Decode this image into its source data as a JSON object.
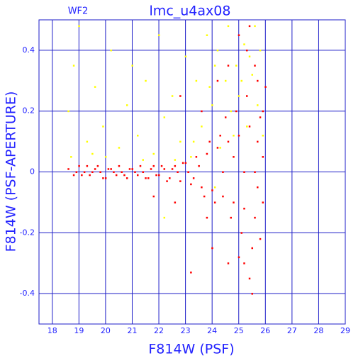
{
  "chart_data": {
    "type": "scatter",
    "title": "lmc_u4ax08",
    "annotation": "WF2",
    "x_label": "F814W (PSF)",
    "y_label": "F814W (PSF-APERTURE)",
    "xlim": [
      17.5,
      29
    ],
    "xticks": [
      18,
      19,
      20,
      21,
      22,
      23,
      24,
      25,
      26,
      27,
      28,
      29
    ],
    "ylim": [
      -0.5,
      0.5
    ],
    "yticks": [
      -0.4,
      -0.2,
      0,
      0.2,
      0.4
    ],
    "grid": true,
    "series": [
      {
        "color": "#ffff00",
        "x": [
          18.6,
          18.8,
          19.0,
          19.3,
          19.6,
          19.9,
          20.2,
          20.5,
          20.8,
          21.0,
          21.2,
          21.5,
          21.8,
          22.0,
          22.2,
          22.5,
          22.8,
          23.0,
          23.2,
          23.4,
          23.6,
          23.8,
          24.0,
          24.2,
          24.3,
          24.5,
          24.6,
          24.8,
          24.9,
          25.0,
          25.2,
          25.3,
          25.5,
          25.6,
          25.7,
          25.8,
          25.9,
          24.1,
          23.9,
          24.7,
          25.1,
          25.4,
          20.0,
          21.4,
          22.6,
          23.3,
          18.7,
          19.5,
          22.2,
          24.1
        ],
        "y": [
          0.2,
          0.35,
          0.48,
          0.1,
          0.28,
          0.15,
          0.4,
          0.08,
          0.22,
          0.35,
          0.12,
          0.3,
          0.06,
          0.45,
          0.18,
          0.25,
          0.1,
          0.38,
          0.05,
          0.3,
          0.15,
          0.45,
          0.22,
          0.4,
          0.08,
          0.3,
          0.48,
          0.12,
          0.35,
          0.25,
          0.42,
          0.15,
          0.32,
          0.48,
          0.22,
          0.4,
          0.12,
          0.35,
          0.28,
          0.2,
          0.3,
          0.38,
          0.05,
          0.04,
          0.04,
          0.1,
          0.05,
          0.06,
          -0.15,
          -0.05
        ]
      },
      {
        "color": "#ff0000",
        "x": [
          18.6,
          18.8,
          19.0,
          19.2,
          19.4,
          19.6,
          19.8,
          20.0,
          20.2,
          20.4,
          20.6,
          20.8,
          21.0,
          21.2,
          21.4,
          21.6,
          21.8,
          22.0,
          22.2,
          22.4,
          22.6,
          22.8,
          23.0,
          23.2,
          23.4,
          23.6,
          23.8,
          24.0,
          24.2,
          24.4,
          24.6,
          24.8,
          25.0,
          25.2,
          25.4,
          25.6,
          25.8,
          25.1,
          25.3,
          25.5,
          25.7,
          25.2,
          25.9,
          25.6,
          25.4,
          25.5,
          25.3,
          25.8,
          24.9,
          24.7,
          24.5,
          24.3,
          24.1,
          23.9,
          23.7,
          23.5,
          23.3,
          23.1,
          22.9,
          22.7,
          22.5,
          22.3,
          22.1,
          21.9,
          21.7,
          21.5,
          21.3,
          21.1,
          20.9,
          20.7,
          20.5,
          20.3,
          20.1,
          19.9,
          19.7,
          19.5,
          19.3,
          19.1,
          18.9,
          24.2,
          24.6,
          25.0,
          25.4,
          23.2,
          24.0,
          24.6,
          25.0,
          25.9,
          25.9,
          25.7,
          25.7,
          26.0,
          22.8,
          23.6,
          21.8,
          22.6,
          23.8,
          24.8,
          24.4,
          25.2,
          25.6
        ],
        "y": [
          0.01,
          -0.01,
          0.02,
          0.0,
          -0.01,
          0.01,
          0.0,
          -0.02,
          0.01,
          -0.01,
          0.0,
          -0.02,
          0.01,
          -0.01,
          0.0,
          -0.02,
          0.02,
          -0.01,
          0.01,
          -0.02,
          0.02,
          -0.03,
          0.03,
          -0.04,
          0.05,
          -0.05,
          0.06,
          -0.06,
          0.08,
          -0.08,
          0.1,
          -0.1,
          0.12,
          -0.12,
          0.15,
          -0.15,
          0.18,
          -0.2,
          0.25,
          -0.25,
          0.3,
          -0.3,
          0.2,
          0.35,
          -0.35,
          -0.4,
          0.4,
          -0.22,
          0.2,
          -0.15,
          0.18,
          0.12,
          -0.1,
          0.1,
          -0.08,
          0.02,
          -0.02,
          0.0,
          0.03,
          0.0,
          0.01,
          -0.03,
          0.02,
          -0.01,
          0.01,
          -0.02,
          0.02,
          0.0,
          0.01,
          -0.01,
          0.02,
          0.0,
          0.01,
          -0.02,
          0.02,
          0.0,
          0.02,
          -0.01,
          0.0,
          0.3,
          0.35,
          0.45,
          0.48,
          -0.33,
          -0.25,
          -0.3,
          -0.28,
          -0.1,
          0.05,
          0.1,
          -0.05,
          0.28,
          0.25,
          0.2,
          -0.08,
          -0.1,
          -0.15,
          0.05,
          0.0,
          0.0,
          0.0
        ]
      }
    ]
  }
}
